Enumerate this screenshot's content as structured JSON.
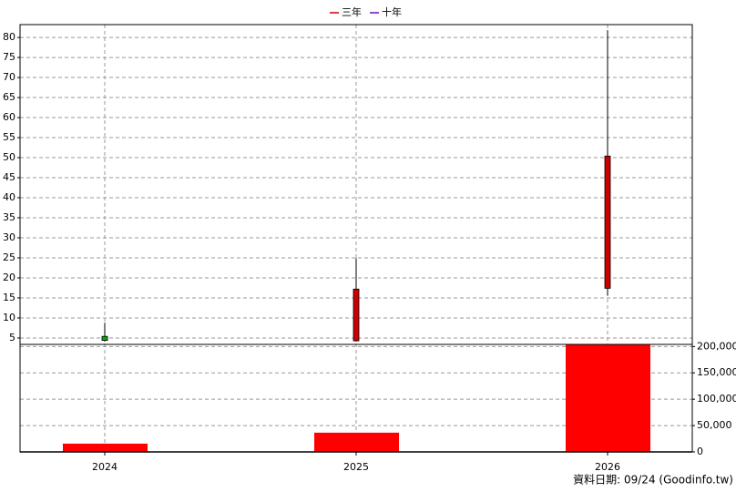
{
  "chart_data": {
    "type": "candlestick",
    "legend": [
      {
        "name": "三年",
        "color": "#cc0000"
      },
      {
        "name": "十年",
        "color": "#6a0dad"
      }
    ],
    "categories": [
      "2024",
      "2025",
      "2026"
    ],
    "open": [
      5.4,
      4.3,
      17.4
    ],
    "high": [
      8.8,
      24.9,
      81.8
    ],
    "low": [
      4.1,
      4.1,
      15.6
    ],
    "close": [
      4.4,
      17.2,
      50.4
    ],
    "up_color": "#cc0000",
    "down_color": "#00b000",
    "ylim": [
      3.4,
      83.2
    ],
    "yticks": [
      5,
      10,
      15,
      20,
      25,
      30,
      35,
      40,
      45,
      50,
      55,
      60,
      65,
      70,
      75,
      80
    ],
    "volume": {
      "color": "#ff0000",
      "values": [
        15700,
        36500,
        203500
      ]
    },
    "y2lim": [
      0,
      204000
    ],
    "y2ticks": [
      {
        "value": 0,
        "label": "0"
      },
      {
        "value": 50000,
        "label": "50,000"
      },
      {
        "value": 100000,
        "label": "100,000"
      },
      {
        "value": 150000,
        "label": "150,000"
      },
      {
        "value": 200000,
        "label": "200,000"
      }
    ],
    "grid": true,
    "footer": "資料日期: 09/24  (Goodinfo.tw)"
  }
}
